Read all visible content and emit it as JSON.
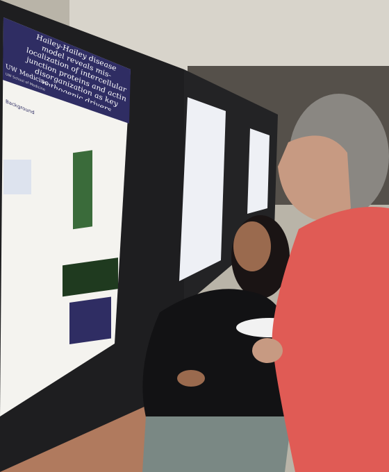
{
  "poster": {
    "title": "Hailey-Hailey disease model reveals mis-localization of intercellular junction proteins and actin disorganization as key pathogenic drivers",
    "institution": "UW Medicine",
    "school": "UW School of Medicine",
    "section": "Background"
  }
}
